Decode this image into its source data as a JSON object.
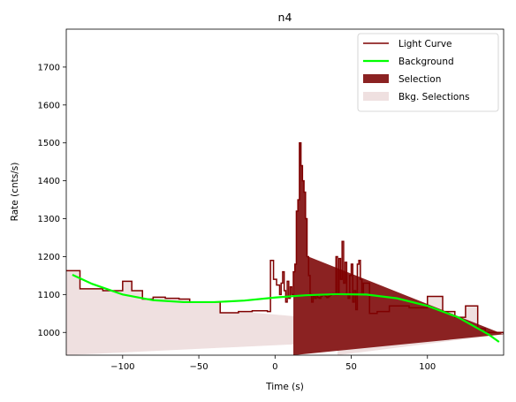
{
  "chart_data": {
    "type": "line",
    "title": "n4",
    "xlabel": "Time (s)",
    "ylabel": "Rate (cnts/s)",
    "xlim": [
      -137,
      150
    ],
    "ylim": [
      940,
      1800
    ],
    "xticks": [
      -100,
      -50,
      0,
      50,
      100
    ],
    "yticks": [
      1000,
      1100,
      1200,
      1300,
      1400,
      1500,
      1600,
      1700
    ],
    "grid": false,
    "legend_position": "top-right",
    "colors": {
      "light_curve": "#7f0000",
      "background": "#00ff00",
      "selection": "#8b2222",
      "bkg_selection": "#efe0e0"
    },
    "legend": [
      {
        "label": "Light Curve",
        "kind": "line",
        "color": "#7f0000"
      },
      {
        "label": "Background",
        "kind": "line",
        "color": "#00ff00"
      },
      {
        "label": "Selection",
        "kind": "patch",
        "color": "#8b2222"
      },
      {
        "label": "Bkg. Selections",
        "kind": "patch",
        "color": "#efe0e0"
      }
    ],
    "light_curve": {
      "name": "Light Curve",
      "edges": [
        -137,
        -128,
        -113,
        -100,
        -94,
        -87,
        -80,
        -72,
        -63,
        -56,
        -48,
        -36,
        -24,
        -15,
        -5,
        -3,
        -1,
        1,
        3,
        4,
        5,
        6,
        7,
        8,
        9,
        10,
        11,
        12,
        13,
        14,
        15,
        16,
        17,
        18,
        19,
        20,
        21,
        22,
        23,
        24,
        25,
        26,
        27,
        28,
        29,
        30,
        31,
        32,
        33,
        34,
        35,
        36,
        37,
        38,
        39,
        40,
        41,
        42,
        43,
        44,
        45,
        46,
        47,
        48,
        49,
        50,
        51,
        52,
        53,
        54,
        55,
        56,
        57,
        58,
        62,
        67,
        75,
        88,
        100,
        110,
        118,
        125,
        133,
        138,
        150
      ],
      "values": [
        1163,
        1115,
        1110,
        1135,
        1110,
        1088,
        1093,
        1090,
        1088,
        1080,
        1080,
        1052,
        1055,
        1057,
        1055,
        1190,
        1140,
        1125,
        1100,
        1130,
        1160,
        1110,
        1080,
        1135,
        1090,
        1120,
        1100,
        1160,
        1180,
        1320,
        1350,
        1500,
        1440,
        1400,
        1370,
        1300,
        1200,
        1150,
        1100,
        1080,
        1095,
        1090,
        1098,
        1092,
        1090,
        1095,
        1100,
        1098,
        1095,
        1092,
        1095,
        1098,
        1100,
        1102,
        1100,
        1200,
        1100,
        1195,
        1140,
        1240,
        1130,
        1185,
        1100,
        1090,
        1150,
        1180,
        1080,
        1110,
        1060,
        1180,
        1190,
        1140,
        1100,
        1130,
        1050,
        1055,
        1070,
        1065,
        1095,
        1055,
        1040,
        1070,
        1010,
        1000,
        995
      ]
    },
    "background": {
      "name": "Background",
      "x": [
        -133,
        -120,
        -100,
        -80,
        -60,
        -40,
        -20,
        0,
        20,
        40,
        60,
        80,
        100,
        120,
        140,
        147
      ],
      "y": [
        1152,
        1128,
        1100,
        1085,
        1080,
        1080,
        1084,
        1092,
        1098,
        1101,
        1100,
        1090,
        1070,
        1040,
        995,
        975
      ]
    },
    "selection": {
      "x_range": [
        12,
        22
      ]
    },
    "bkg_selections": [
      {
        "x_range": [
          -137,
          -23
        ]
      },
      {
        "x_range": [
          41,
          150
        ]
      }
    ]
  }
}
